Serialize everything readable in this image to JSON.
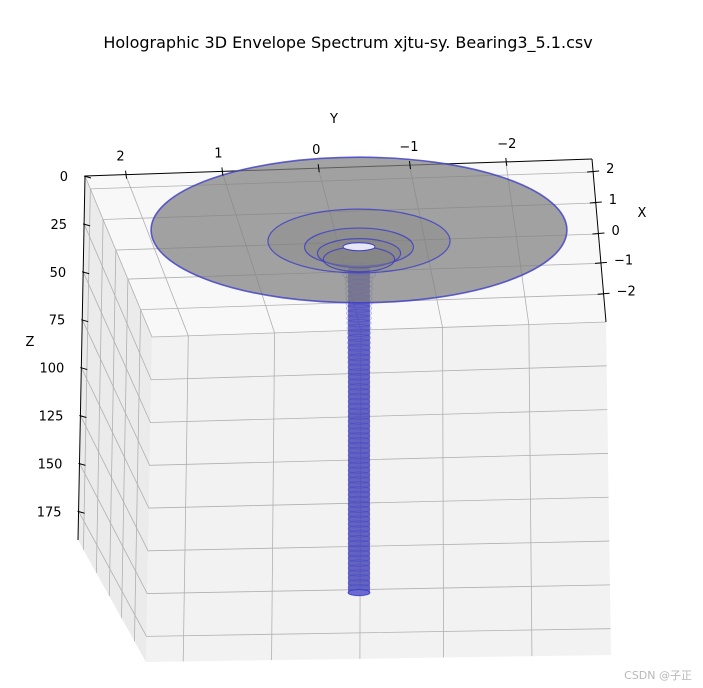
{
  "chart_data": {
    "type": "3d-surface",
    "title": "Holographic 3D Envelope Spectrum  xjtu-sy. Bearing3_5.1.csv",
    "xlabel": "X",
    "ylabel": "Y",
    "zlabel": "Z",
    "x_ticks": [
      "2",
      "1",
      "0",
      "−1",
      "−2"
    ],
    "y_ticks": [
      "2",
      "1",
      "0",
      "−1",
      "−2"
    ],
    "z_ticks": [
      "0",
      "25",
      "50",
      "75",
      "100",
      "125",
      "150",
      "175"
    ],
    "xlim": [
      -2.5,
      2.5
    ],
    "ylim": [
      -2.5,
      2.5
    ],
    "zlim": [
      0,
      190
    ],
    "z_axis_inverted": true,
    "grid": true,
    "series": [
      {
        "surface": "stack of circular envelope rings centred on x=0, y=0",
        "ring_radius_by_z": [
          [
            40,
            2.1
          ],
          [
            44,
            0.92
          ],
          [
            46,
            0.55
          ],
          [
            48,
            0.42
          ],
          [
            50,
            0.36
          ],
          [
            55,
            0.2
          ],
          [
            60,
            0.13
          ],
          [
            70,
            0.12
          ],
          [
            80,
            0.11
          ],
          [
            100,
            0.1
          ],
          [
            125,
            0.1
          ],
          [
            150,
            0.1
          ],
          [
            175,
            0.1
          ],
          [
            188,
            0.1
          ]
        ],
        "face_color": "#808080",
        "edge_color": "#3b3bc8"
      }
    ],
    "watermark": "CSDN @子正"
  }
}
